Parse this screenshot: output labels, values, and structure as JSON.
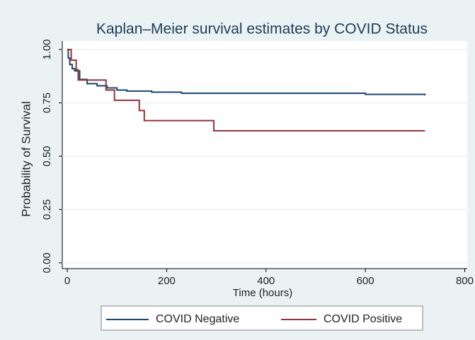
{
  "chart_data": {
    "type": "step",
    "title": "Kaplan–Meier survival estimates by COVID Status",
    "x_label": "Time (hours)",
    "y_label": "Probability of Survival",
    "xlim": [
      -10,
      805
    ],
    "ylim": [
      -0.027,
      1.04
    ],
    "xticks": [
      0,
      200,
      400,
      600,
      800
    ],
    "yticks": [
      {
        "value": 0,
        "label": "0.00"
      },
      {
        "value": 0.25,
        "label": "0.25"
      },
      {
        "value": 0.5,
        "label": "0.50"
      },
      {
        "value": 0.75,
        "label": "0.75"
      },
      {
        "value": 1,
        "label": "1.00"
      }
    ],
    "grid": true,
    "series": [
      {
        "name": "COVID Negative",
        "color": "#1a476f",
        "x": [
          0,
          2,
          5,
          10,
          15,
          25,
          40,
          60,
          80,
          100,
          120,
          170,
          230,
          600,
          720
        ],
        "values": [
          1,
          0.96,
          0.93,
          0.91,
          0.9,
          0.86,
          0.84,
          0.83,
          0.82,
          0.81,
          0.805,
          0.8,
          0.795,
          0.79,
          0.785
        ]
      },
      {
        "name": "COVID Positive",
        "color": "#90353b",
        "x": [
          0,
          8,
          18,
          22,
          78,
          95,
          145,
          155,
          295,
          720
        ],
        "values": [
          1,
          0.95,
          0.905,
          0.857,
          0.81,
          0.762,
          0.714,
          0.667,
          0.619,
          0.619
        ]
      }
    ]
  }
}
